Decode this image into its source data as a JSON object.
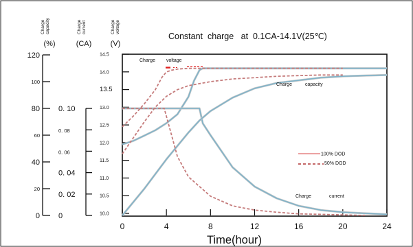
{
  "chart_data": {
    "type": "line",
    "title": "Constant  charge   at  0.1CA-14.1V(25℃)",
    "xlabel": "Time(hour)",
    "xticks": [
      "0",
      "4",
      "8",
      "12",
      "16",
      "20",
      "24"
    ],
    "xlim": [
      0,
      24
    ],
    "axes": [
      {
        "id": "capacity",
        "label_lines": [
          "Charge",
          "capacity"
        ],
        "unit": "(%)",
        "ylim": [
          0,
          120
        ],
        "ticks": [
          {
            "v": 0,
            "label": "0"
          },
          {
            "v": 20,
            "label": "20"
          },
          {
            "v": 40,
            "label": "40"
          },
          {
            "v": 60,
            "label": "60"
          },
          {
            "v": 80,
            "label": "80"
          },
          {
            "v": 100,
            "label": "100"
          },
          {
            "v": 120,
            "label": "120"
          }
        ]
      },
      {
        "id": "current",
        "label_lines": [
          "Charge",
          "current"
        ],
        "unit": "(CA)",
        "ylim": [
          0,
          0.1
        ],
        "ticks": [
          {
            "v": 0,
            "label": "0"
          },
          {
            "v": 0.02,
            "label": "0. 02"
          },
          {
            "v": 0.04,
            "label": "0. 04"
          },
          {
            "v": 0.06,
            "label": "0. 06"
          },
          {
            "v": 0.08,
            "label": "0. 08"
          },
          {
            "v": 0.1,
            "label": "0. 10"
          }
        ]
      },
      {
        "id": "voltage",
        "label_lines": [
          "Charge",
          "voltage"
        ],
        "unit": "(V)",
        "ylim": [
          10.0,
          14.5
        ],
        "ticks": [
          {
            "v": 10.0,
            "label": "10.0"
          },
          {
            "v": 10.5,
            "label": "10.5"
          },
          {
            "v": 11.0,
            "label": "11.0"
          },
          {
            "v": 11.5,
            "label": "11.5"
          },
          {
            "v": 12.0,
            "label": "12.0"
          },
          {
            "v": 12.5,
            "label": "12.5"
          },
          {
            "v": 13.0,
            "label": "13.0"
          },
          {
            "v": 13.5,
            "label": "13.5"
          },
          {
            "v": 14.0,
            "label": "14.0"
          },
          {
            "v": 14.5,
            "label": "14.5"
          }
        ]
      }
    ],
    "curve_labels": [
      "Charge",
      "voltage",
      "Charge",
      "capacity",
      "Charge",
      "current"
    ],
    "legend": [
      {
        "label": "100% DOD",
        "color": "#e06b6b",
        "dash": false
      },
      {
        "label": "50% DOD",
        "color": "#b03535",
        "dash": true
      }
    ],
    "series": [
      {
        "dod": "100%",
        "axis": "voltage",
        "color": "#7fb3c9",
        "x": [
          0,
          1,
          2,
          3,
          4,
          5,
          6,
          6.5,
          7,
          7.3,
          8,
          12,
          16,
          20,
          24
        ],
        "y": [
          11.95,
          12.05,
          12.2,
          12.35,
          12.55,
          12.8,
          13.3,
          13.75,
          14.05,
          14.1,
          14.1,
          14.1,
          14.1,
          14.1,
          14.1
        ]
      },
      {
        "dod": "100%",
        "axis": "current",
        "color": "#7fb3c9",
        "x": [
          0,
          3,
          7,
          7.3,
          8,
          10,
          12,
          14,
          16,
          18,
          20,
          22,
          24
        ],
        "y": [
          0.1,
          0.1,
          0.1,
          0.086,
          0.075,
          0.045,
          0.027,
          0.016,
          0.009,
          0.005,
          0.003,
          0.002,
          0.001
        ]
      },
      {
        "dod": "100%",
        "axis": "capacity",
        "color": "#7fb3c9",
        "x": [
          0,
          2,
          4,
          6,
          7,
          8,
          10,
          12,
          14,
          16,
          18,
          20,
          24
        ],
        "y": [
          0,
          20,
          42,
          62,
          71,
          78,
          88,
          95,
          99,
          101,
          103,
          104,
          105
        ]
      },
      {
        "dod": "50%",
        "axis": "voltage",
        "color": "#c57b7b",
        "x": [
          0,
          1,
          2,
          3,
          3.6,
          4,
          4.5,
          5,
          6,
          8,
          12,
          16,
          20
        ],
        "y": [
          12.45,
          12.75,
          13.1,
          13.5,
          13.85,
          14.0,
          14.05,
          14.08,
          14.1,
          14.1,
          14.1,
          14.1,
          14.1
        ]
      },
      {
        "dod": "50%",
        "axis": "current",
        "color": "#c57b7b",
        "x": [
          0,
          3.8,
          4.2,
          5,
          6,
          8,
          10,
          12,
          14,
          16,
          18,
          20,
          22
        ],
        "y": [
          0.1,
          0.1,
          0.085,
          0.055,
          0.036,
          0.018,
          0.009,
          0.005,
          0.003,
          0.0015,
          0.001,
          0.0005,
          0
        ]
      },
      {
        "dod": "50%",
        "axis": "capacity",
        "color": "#c57b7b",
        "x": [
          0,
          1,
          2,
          3,
          4,
          5,
          6,
          8,
          10,
          12,
          14,
          16,
          18,
          20
        ],
        "y": [
          46,
          58,
          70,
          81,
          89,
          94,
          97,
          100,
          102,
          103,
          104,
          104.5,
          105,
          105
        ]
      }
    ]
  }
}
